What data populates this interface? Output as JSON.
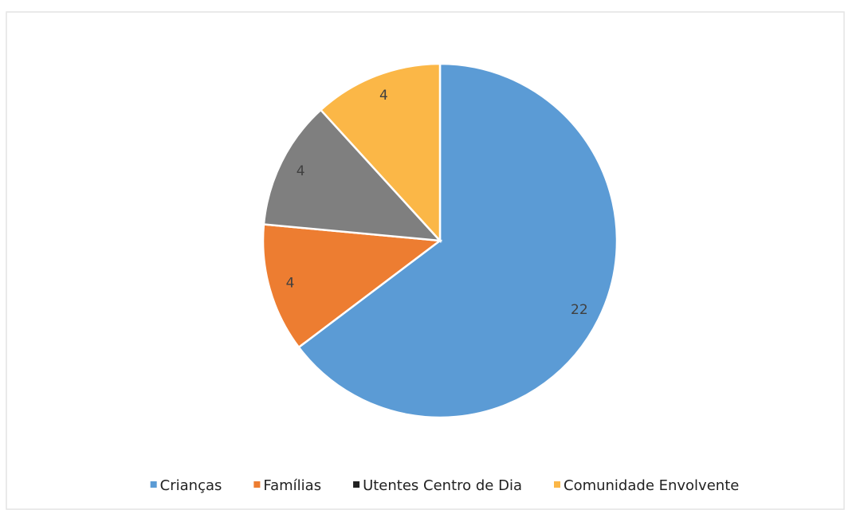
{
  "chart_data": {
    "type": "pie",
    "categories": [
      "Crianças",
      "Famílias",
      "Utentes Centro de Dia",
      "Comunidade Envolvente"
    ],
    "values": [
      22,
      4,
      4,
      4
    ],
    "colors": [
      "#5b9bd5",
      "#ed7d31",
      "#7f7f7f",
      "#fbb747"
    ],
    "legend": "bottom"
  }
}
